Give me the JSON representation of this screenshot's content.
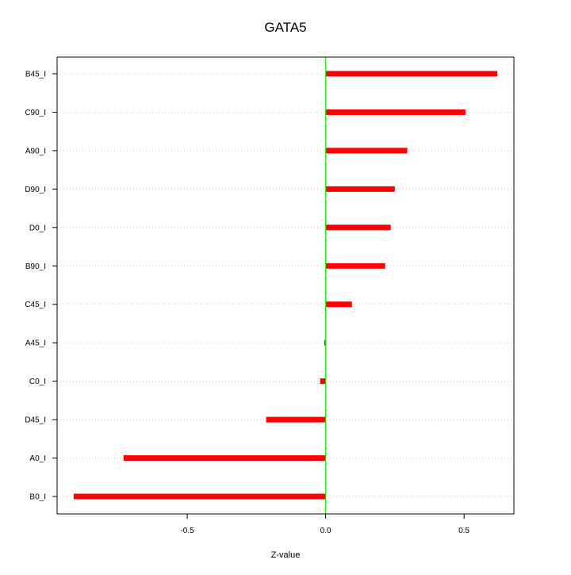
{
  "chart_data": {
    "type": "bar",
    "orientation": "horizontal",
    "title": "GATA5",
    "xlabel": "Z-value",
    "ylabel": "",
    "categories": [
      "B45_I",
      "C90_I",
      "A90_I",
      "D90_I",
      "D0_I",
      "B90_I",
      "C45_I",
      "A45_I",
      "C0_I",
      "D45_I",
      "A0_I",
      "B0_I"
    ],
    "values": [
      0.62,
      0.505,
      0.295,
      0.25,
      0.235,
      0.215,
      0.095,
      -0.005,
      -0.02,
      -0.215,
      -0.73,
      -0.91
    ],
    "xlim": [
      -0.97,
      0.68
    ],
    "xticks": [
      -0.5,
      0.0,
      0.5
    ],
    "xtick_labels": [
      "-0.5",
      "0.0",
      "0.5"
    ],
    "grid": "horizontal dotted",
    "reference_line": 0,
    "colors": {
      "bar": "#ff0000",
      "reference_line": "#00ee00",
      "grid": "#c8c8c8",
      "axis": "#000000"
    }
  }
}
